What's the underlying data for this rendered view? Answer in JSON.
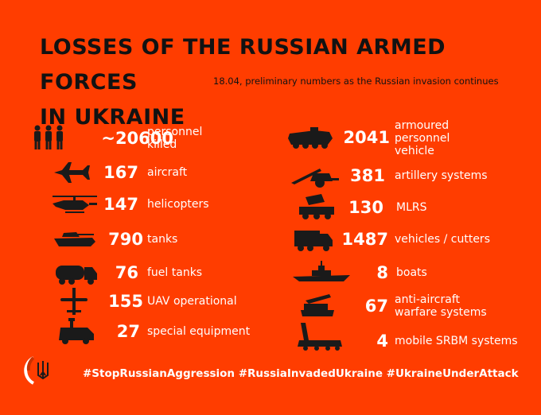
{
  "header": {
    "title_line1": "LOSSES OF THE RUSSIAN ARMED FORCES",
    "title_line2": "IN UKRAINE",
    "subtitle": "18.04, preliminary numbers as the Russian invasion continues"
  },
  "left": [
    {
      "icon": "soldiers-icon",
      "value": "~20600",
      "label": "personnel killed"
    },
    {
      "icon": "aircraft-icon",
      "value": "167",
      "label": "aircraft"
    },
    {
      "icon": "helicopter-icon",
      "value": "147",
      "label": "helicopters"
    },
    {
      "icon": "tank-icon",
      "value": "790",
      "label": "tanks"
    },
    {
      "icon": "fuel-truck-icon",
      "value": "76",
      "label": "fuel tanks"
    },
    {
      "icon": "uav-icon",
      "value": "155",
      "label": "UAV operational"
    },
    {
      "icon": "special-equipment-icon",
      "value": "27",
      "label": "special equipment"
    }
  ],
  "right": [
    {
      "icon": "armoured-vehicle-icon",
      "value": "2041",
      "label": "armoured personnel vehicle"
    },
    {
      "icon": "artillery-icon",
      "value": "381",
      "label": "artillery systems"
    },
    {
      "icon": "mlrs-icon",
      "value": "130",
      "label": "MLRS"
    },
    {
      "icon": "truck-icon",
      "value": "1487",
      "label": "vehicles / cutters"
    },
    {
      "icon": "boat-icon",
      "value": "8",
      "label": "boats"
    },
    {
      "icon": "anti-aircraft-icon",
      "value": "67",
      "label": "anti-aircraft warfare systems"
    },
    {
      "icon": "srbm-launcher-icon",
      "value": "4",
      "label": "mobile SRBM systems"
    }
  ],
  "footer": {
    "hashtags": "#StopRussianAggression #RussiaInvadedUkraine #UkraineUnderAttack"
  },
  "colors": {
    "background": "#FF3D00",
    "text_dark": "#121212",
    "text_light": "#FFFFFF",
    "icon": "#1A1A1A"
  }
}
